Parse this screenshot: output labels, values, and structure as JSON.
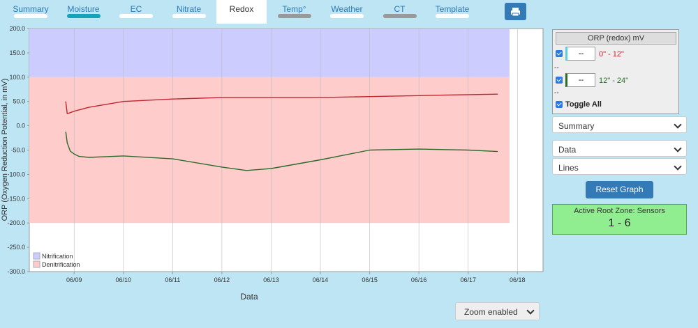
{
  "tabs": [
    {
      "label": "Summary",
      "bar": "#ffffff"
    },
    {
      "label": "Moisture",
      "bar": "#17a2b8"
    },
    {
      "label": "EC",
      "bar": "#ffffff"
    },
    {
      "label": "Nitrate",
      "bar": "#ffffff"
    },
    {
      "label": "Redox",
      "bar": "#999999"
    },
    {
      "label": "Temp°",
      "bar": "#999999"
    },
    {
      "label": "Weather",
      "bar": "#ffffff"
    },
    {
      "label": "CT",
      "bar": "#999999"
    },
    {
      "label": "Template",
      "bar": "#ffffff"
    }
  ],
  "active_tab": 4,
  "chart_data": {
    "type": "line",
    "y_label": "ORP (Oxygen Reduction Potential, in mV)",
    "x_label": "Data",
    "xlim": [
      8.09,
      18.52
    ],
    "xticks": [
      {
        "value": 9,
        "label": "06/09"
      },
      {
        "value": 10,
        "label": "06/10"
      },
      {
        "value": 11,
        "label": "06/11"
      },
      {
        "value": 12,
        "label": "06/12"
      },
      {
        "value": 13,
        "label": "06/13"
      },
      {
        "value": 14,
        "label": "06/14"
      },
      {
        "value": 15,
        "label": "06/15"
      },
      {
        "value": 16,
        "label": "06/16"
      },
      {
        "value": 17,
        "label": "06/17"
      },
      {
        "value": 18,
        "label": "06/18"
      }
    ],
    "ylim": [
      -300,
      200
    ],
    "yticks": [
      {
        "value": 200,
        "label": "200.0"
      },
      {
        "value": 150,
        "label": "150.0"
      },
      {
        "value": 100,
        "label": "100.0"
      },
      {
        "value": 50,
        "label": "50.0"
      },
      {
        "value": 0,
        "label": "0.0"
      },
      {
        "value": -50,
        "label": "-50.0"
      },
      {
        "value": -100,
        "label": "-100.0"
      },
      {
        "value": -150,
        "label": "-150.0"
      },
      {
        "value": -200,
        "label": "-200.0"
      },
      {
        "value": -250,
        "label": "-250.0"
      },
      {
        "value": -300,
        "label": "-300.0"
      }
    ],
    "grid_x": true,
    "bands": [
      {
        "name": "Nitrification",
        "from": 100,
        "to": 200,
        "x": [
          8.09,
          17.84
        ],
        "color": "#ccccff"
      },
      {
        "name": "Denitrification",
        "from": -200,
        "to": 100,
        "x": [
          8.09,
          17.84
        ],
        "color": "#ffcccc"
      }
    ],
    "series": [
      {
        "name": "0\" - 12\"",
        "color": "#c0262d",
        "x": [
          8.83,
          8.86,
          8.92,
          9.0,
          9.3,
          10.0,
          11.0,
          12.0,
          13.0,
          14.0,
          15.0,
          16.0,
          17.0,
          17.6
        ],
        "values": [
          50,
          25,
          27,
          30,
          38,
          50,
          55,
          58,
          58,
          58,
          60,
          62,
          64,
          65
        ]
      },
      {
        "name": "12\" - 24\"",
        "color": "#2a6b2a",
        "x": [
          8.83,
          8.86,
          8.92,
          9.0,
          9.1,
          9.3,
          10.0,
          11.0,
          12.0,
          12.5,
          13.0,
          14.0,
          15.0,
          16.0,
          17.0,
          17.6
        ],
        "values": [
          -12,
          -35,
          -52,
          -58,
          -63,
          -65,
          -62,
          -68,
          -85,
          -92,
          -88,
          -70,
          -50,
          -48,
          -50,
          -53
        ]
      }
    ]
  },
  "panel": {
    "title": "ORP (redox) mV",
    "inputs": [
      "--",
      "--"
    ],
    "separators": [
      "--",
      "--"
    ],
    "toggle": "Toggle All",
    "selects": [
      "Summary",
      "Data",
      "Lines"
    ],
    "button": "Reset Graph",
    "zone_title": "Active Root Zone: Sensors",
    "zone_value": "1 - 6"
  },
  "zoom": "Zoom enabled"
}
